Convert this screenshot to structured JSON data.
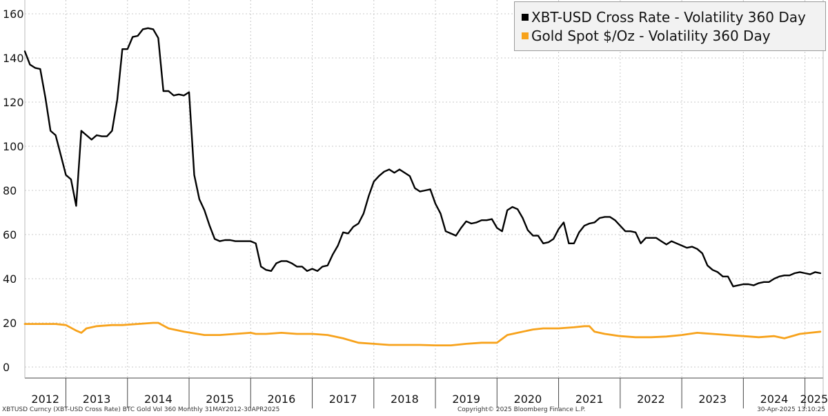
{
  "chart_data": {
    "type": "line",
    "y_ticks": [
      0,
      20,
      40,
      60,
      80,
      100,
      120,
      140,
      160
    ],
    "ylim": [
      -4,
      163
    ],
    "x_ticks": [
      "2012",
      "2013",
      "2014",
      "2015",
      "2016",
      "2017",
      "2018",
      "2019",
      "2020",
      "2021",
      "2022",
      "2023",
      "2024",
      "2025"
    ],
    "grid": true,
    "legend": "top-right",
    "series": [
      {
        "name": "XBT-USD Cross Rate - Volatility 360 Day",
        "color": "#000000",
        "x": [
          "2012-05",
          "2012-06",
          "2012-07",
          "2012-08",
          "2012-09",
          "2012-10",
          "2012-11",
          "2012-12",
          "2013-01",
          "2013-02",
          "2013-03",
          "2013-04",
          "2013-05",
          "2013-06",
          "2013-07",
          "2013-08",
          "2013-09",
          "2013-10",
          "2013-11",
          "2013-12",
          "2014-01",
          "2014-02",
          "2014-03",
          "2014-04",
          "2014-05",
          "2014-06",
          "2014-07",
          "2014-08",
          "2014-09",
          "2014-10",
          "2014-11",
          "2014-12",
          "2015-01",
          "2015-02",
          "2015-03",
          "2015-04",
          "2015-05",
          "2015-06",
          "2015-07",
          "2015-08",
          "2015-09",
          "2015-10",
          "2015-11",
          "2015-12",
          "2016-01",
          "2016-02",
          "2016-03",
          "2016-04",
          "2016-05",
          "2016-06",
          "2016-07",
          "2016-08",
          "2016-09",
          "2016-10",
          "2016-11",
          "2016-12",
          "2017-01",
          "2017-02",
          "2017-03",
          "2017-04",
          "2017-05",
          "2017-06",
          "2017-07",
          "2017-08",
          "2017-09",
          "2017-10",
          "2017-11",
          "2017-12",
          "2018-01",
          "2018-02",
          "2018-03",
          "2018-04",
          "2018-05",
          "2018-06",
          "2018-07",
          "2018-08",
          "2018-09",
          "2018-10",
          "2018-11",
          "2018-12",
          "2019-01",
          "2019-02",
          "2019-03",
          "2019-04",
          "2019-05",
          "2019-06",
          "2019-07",
          "2019-08",
          "2019-09",
          "2019-10",
          "2019-11",
          "2019-12",
          "2020-01",
          "2020-02",
          "2020-03",
          "2020-04",
          "2020-05",
          "2020-06",
          "2020-07",
          "2020-08",
          "2020-09",
          "2020-10",
          "2020-11",
          "2020-12",
          "2021-01",
          "2021-02",
          "2021-03",
          "2021-04",
          "2021-05",
          "2021-06",
          "2021-07",
          "2021-08",
          "2021-09",
          "2021-10",
          "2021-11",
          "2021-12",
          "2022-01",
          "2022-02",
          "2022-03",
          "2022-04",
          "2022-05",
          "2022-06",
          "2022-07",
          "2022-08",
          "2022-09",
          "2022-10",
          "2022-11",
          "2022-12",
          "2023-01",
          "2023-02",
          "2023-03",
          "2023-04",
          "2023-05",
          "2023-06",
          "2023-07",
          "2023-08",
          "2023-09",
          "2023-10",
          "2023-11",
          "2023-12",
          "2024-01",
          "2024-02",
          "2024-03",
          "2024-04",
          "2024-05",
          "2024-06",
          "2024-07",
          "2024-08",
          "2024-09",
          "2024-10",
          "2024-11",
          "2024-12",
          "2025-01",
          "2025-02",
          "2025-03",
          "2025-04"
        ],
        "values": [
          143,
          137,
          135.5,
          135,
          122,
          107,
          105,
          96,
          87,
          85,
          73,
          107,
          105,
          103,
          105,
          104.5,
          104.5,
          107,
          121,
          144,
          144,
          149.5,
          150,
          153,
          153.5,
          153,
          149,
          125,
          125,
          123,
          123.5,
          123,
          124.5,
          87,
          76,
          71,
          64,
          58,
          57,
          57.5,
          57.5,
          57,
          57,
          57,
          57,
          56,
          45.5,
          44,
          43.5,
          47,
          48,
          48,
          47,
          45.5,
          45.5,
          43.5,
          44.5,
          43.5,
          45.5,
          46,
          51,
          55,
          61,
          60.5,
          63.5,
          65,
          69.5,
          77.5,
          84,
          86.5,
          88.5,
          89.5,
          88,
          89.5,
          88,
          86.5,
          81,
          79.5,
          80,
          80.5,
          74,
          69.5,
          61.5,
          60.5,
          59.5,
          63,
          66,
          65,
          65.5,
          66.5,
          66.5,
          67,
          63,
          61.5,
          71,
          72.5,
          71.5,
          67.5,
          62,
          59.5,
          59.5,
          56,
          56.5,
          58,
          62.5,
          65.5,
          56,
          56,
          61,
          64,
          65,
          65.5,
          67.5,
          68,
          68,
          66.5,
          64,
          61.5,
          61.5,
          61,
          56,
          58.5,
          58.5,
          58.5,
          57,
          55.5,
          57,
          56,
          55,
          54,
          54.5,
          53.5,
          51.5,
          46,
          44,
          43,
          41,
          41,
          36.5,
          37,
          37.5,
          37.5,
          37,
          38,
          38.5,
          38.5,
          40,
          41,
          41.5,
          41.5,
          42.5,
          43,
          42.5,
          42,
          43,
          42.5
        ]
      },
      {
        "name": "Gold Spot $/Oz - Volatility 360 Day",
        "color": "#f7a21b",
        "x": [
          "2012-05",
          "2012-08",
          "2012-11",
          "2013-01",
          "2013-03",
          "2013-04",
          "2013-05",
          "2013-07",
          "2013-10",
          "2013-12",
          "2014-03",
          "2014-06",
          "2014-07",
          "2014-09",
          "2014-12",
          "2015-04",
          "2015-07",
          "2015-10",
          "2016-01",
          "2016-02",
          "2016-04",
          "2016-07",
          "2016-10",
          "2017-01",
          "2017-04",
          "2017-07",
          "2017-10",
          "2018-01",
          "2018-04",
          "2018-07",
          "2018-10",
          "2019-01",
          "2019-04",
          "2019-07",
          "2019-10",
          "2020-01",
          "2020-03",
          "2020-05",
          "2020-08",
          "2020-10",
          "2021-01",
          "2021-04",
          "2021-06",
          "2021-07",
          "2021-08",
          "2021-10",
          "2022-01",
          "2022-04",
          "2022-07",
          "2022-10",
          "2023-01",
          "2023-04",
          "2023-07",
          "2023-10",
          "2024-01",
          "2024-04",
          "2024-07",
          "2024-09",
          "2024-12",
          "2025-02",
          "2025-04"
        ],
        "values": [
          19.5,
          19.5,
          19.5,
          19,
          16.5,
          15.5,
          17.5,
          18.5,
          19,
          19,
          19.5,
          20,
          20,
          17.5,
          16,
          14.5,
          14.5,
          15,
          15.5,
          15,
          15,
          15.5,
          15,
          15,
          14.5,
          13,
          11,
          10.5,
          10,
          10,
          10,
          9.8,
          9.8,
          10.5,
          11,
          11,
          14.5,
          15.5,
          17,
          17.5,
          17.5,
          18,
          18.5,
          18.5,
          16,
          15,
          14,
          13.5,
          13.5,
          13.8,
          14.5,
          15.5,
          15,
          14.5,
          14,
          13.5,
          14,
          13,
          15,
          15.5,
          16
        ]
      }
    ]
  },
  "footer": {
    "left": "XBTUSD Curncy (XBT-USD Cross Rate) BTC Gold Vol 360  Monthly 31MAY2012-30APR2025",
    "center": "Copyright© 2025 Bloomberg Finance L.P.",
    "right": "30-Apr-2025 13:10:25"
  }
}
